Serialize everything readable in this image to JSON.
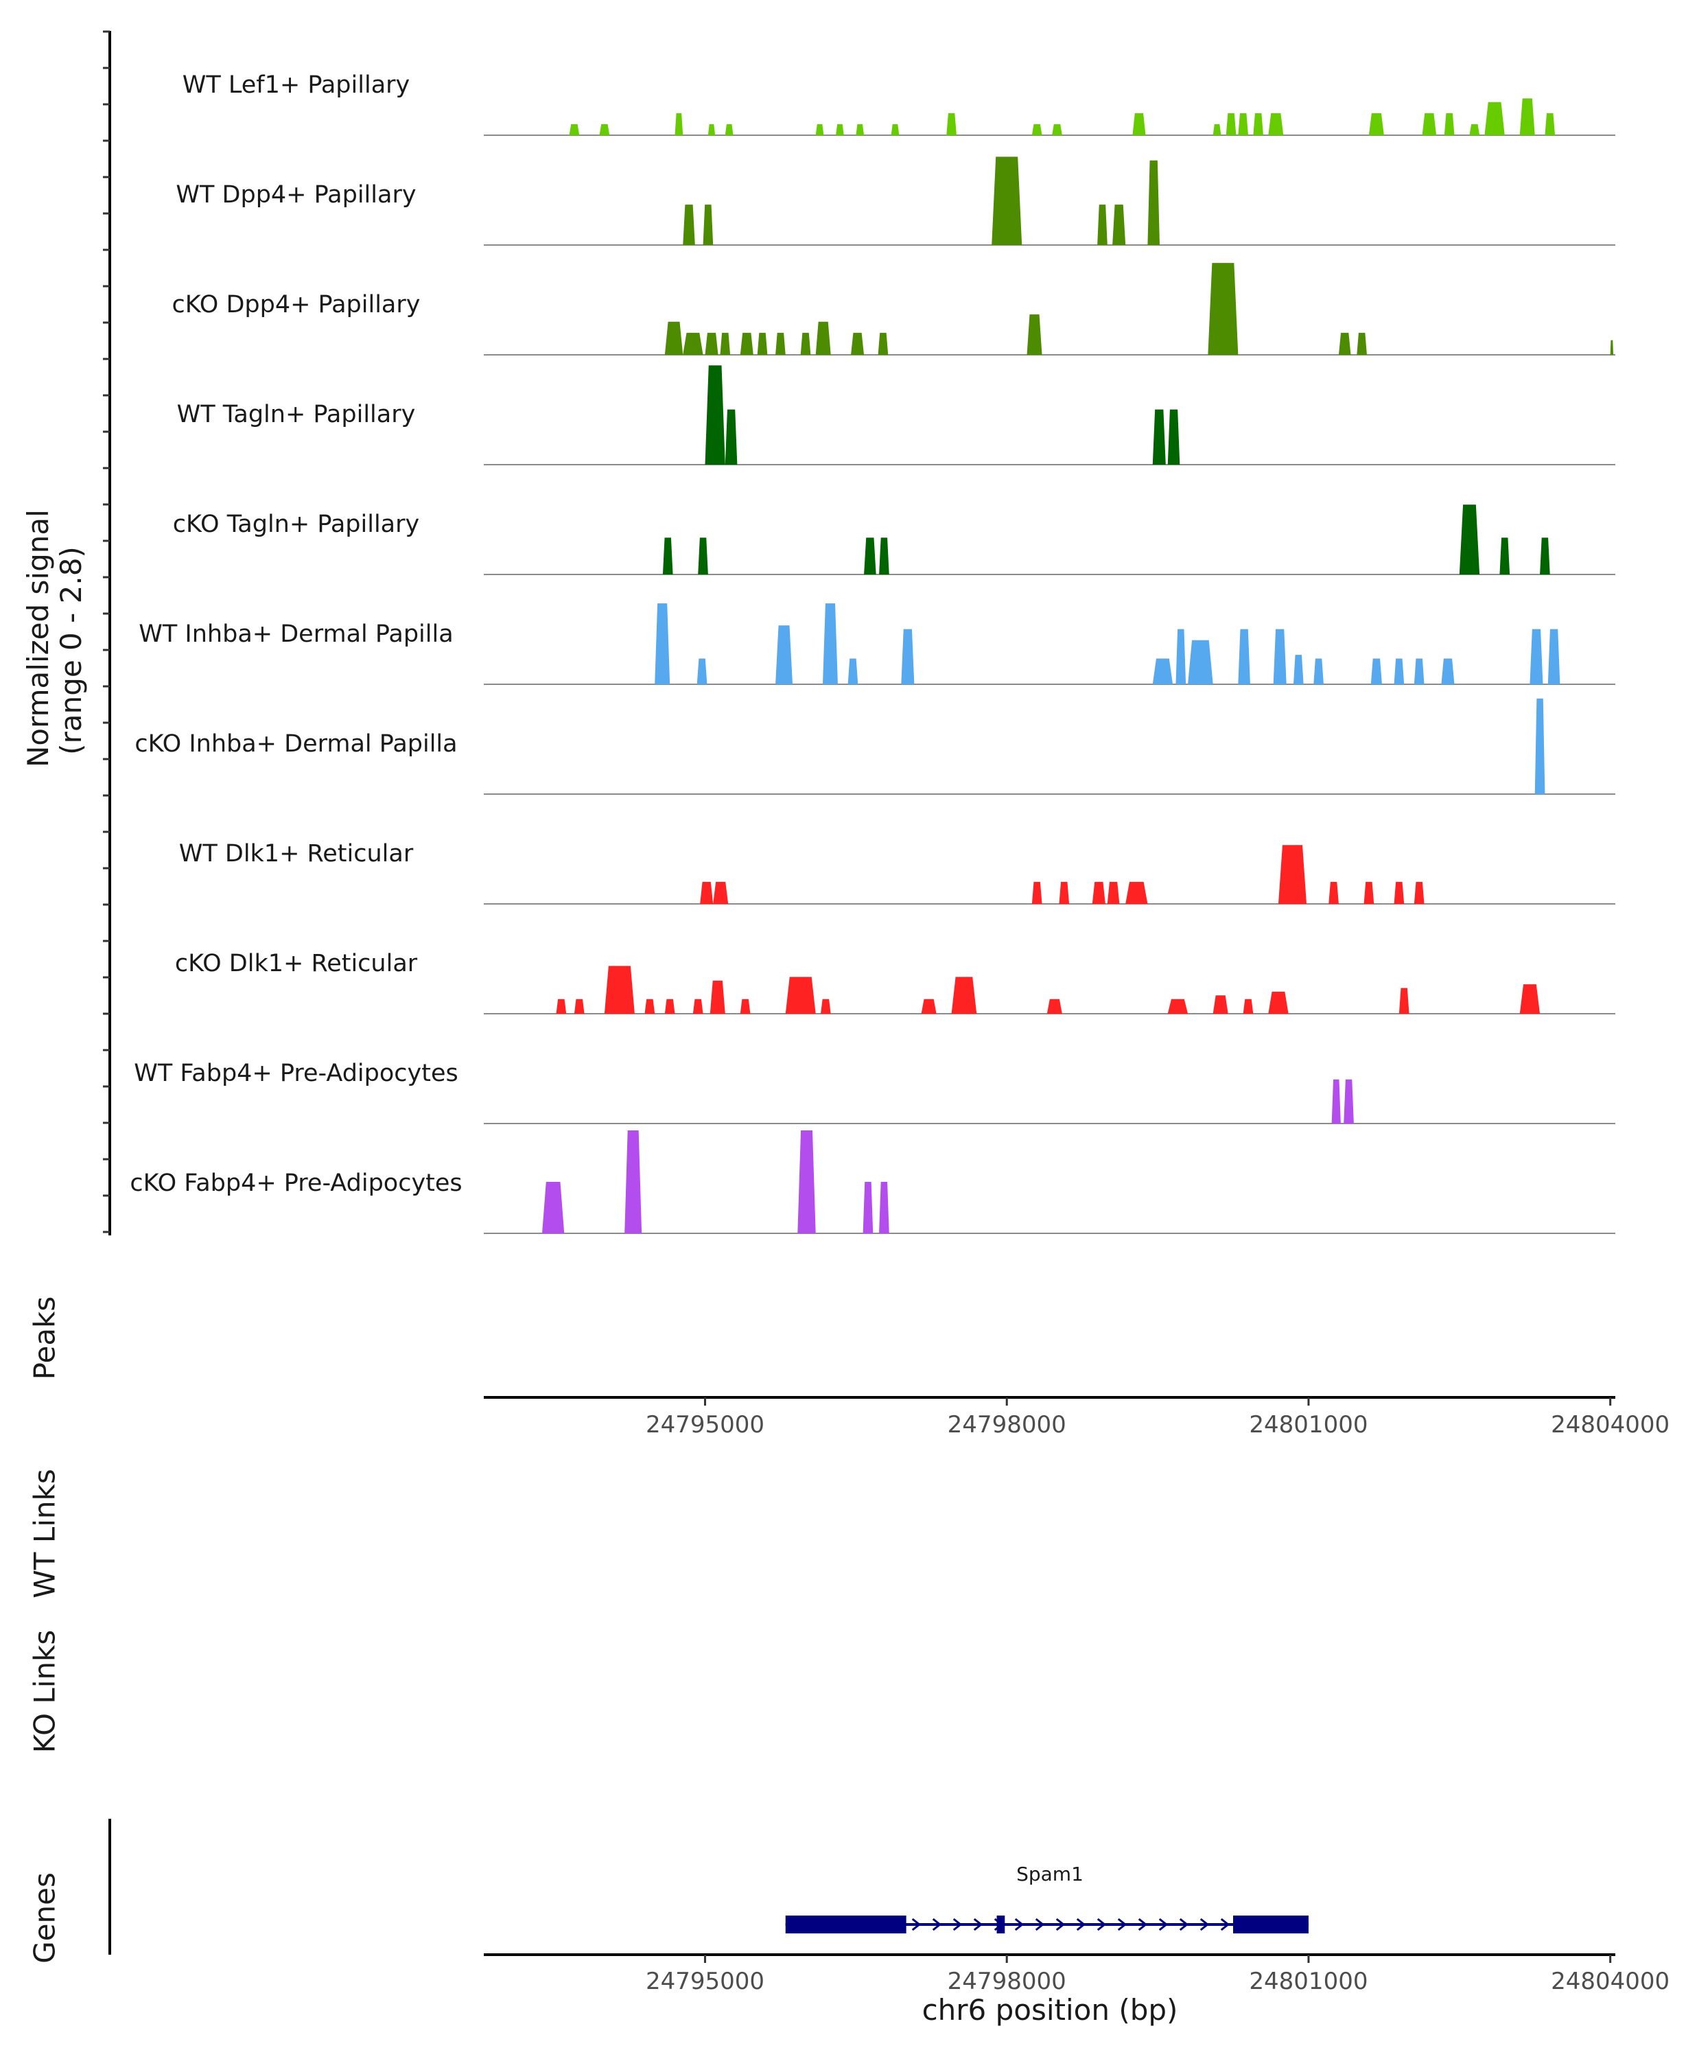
{
  "chart_data": {
    "type": "area",
    "title": "",
    "ylabel": "Normalized signal (range 0 - 2.8)",
    "ylabel_line1": "Normalized signal",
    "ylabel_line2": "(range 0 - 2.8)",
    "xlabel": "chr6 position (bp)",
    "xlim": [
      24792800,
      24804050
    ],
    "ylim": [
      0,
      2.8
    ],
    "x_ticks": [
      24795000,
      24798000,
      24801000,
      24804000
    ],
    "x_tick_labels": [
      "24795000",
      "24798000",
      "24801000",
      "24804000"
    ],
    "panel_labels": {
      "peaks": "Peaks",
      "wt_links": "WT Links",
      "ko_links": "KO Links",
      "genes": "Genes"
    },
    "series": [
      {
        "name": "WT Lef1+ Papillary",
        "color": "#66cc00",
        "peaks": [
          [
            24793650,
            24793750,
            0.3
          ],
          [
            24793950,
            24794050,
            0.3
          ],
          [
            24794700,
            24794780,
            0.6
          ],
          [
            24795030,
            24795100,
            0.3
          ],
          [
            24795200,
            24795280,
            0.3
          ],
          [
            24796100,
            24796180,
            0.3
          ],
          [
            24796300,
            24796380,
            0.3
          ],
          [
            24796500,
            24796580,
            0.3
          ],
          [
            24796850,
            24796930,
            0.3
          ],
          [
            24797400,
            24797500,
            0.6
          ],
          [
            24798250,
            24798350,
            0.3
          ],
          [
            24798450,
            24798550,
            0.3
          ],
          [
            24799250,
            24799380,
            0.6
          ],
          [
            24800050,
            24800130,
            0.3
          ],
          [
            24800180,
            24800280,
            0.6
          ],
          [
            24800300,
            24800400,
            0.6
          ],
          [
            24800450,
            24800550,
            0.6
          ],
          [
            24800600,
            24800750,
            0.6
          ],
          [
            24801600,
            24801750,
            0.6
          ],
          [
            24802130,
            24802270,
            0.6
          ],
          [
            24802350,
            24802450,
            0.6
          ],
          [
            24802600,
            24802700,
            0.3
          ],
          [
            24802750,
            24802950,
            0.9
          ],
          [
            24803100,
            24803250,
            1.0
          ],
          [
            24803350,
            24803450,
            0.6
          ]
        ]
      },
      {
        "name": "WT Dpp4+ Papillary",
        "color": "#4d8c00",
        "peaks": [
          [
            24794780,
            24794900,
            1.1
          ],
          [
            24794980,
            24795080,
            1.1
          ],
          [
            24797850,
            24798150,
            2.4
          ],
          [
            24798900,
            24799000,
            1.1
          ],
          [
            24799050,
            24799180,
            1.1
          ],
          [
            24799400,
            24799520,
            2.3
          ]
        ]
      },
      {
        "name": "cKO Dpp4+ Papillary",
        "color": "#4d8c00",
        "peaks": [
          [
            24794600,
            24794780,
            0.9
          ],
          [
            24794780,
            24794980,
            0.6
          ],
          [
            24795000,
            24795130,
            0.6
          ],
          [
            24795150,
            24795250,
            0.6
          ],
          [
            24795350,
            24795480,
            0.6
          ],
          [
            24795520,
            24795620,
            0.6
          ],
          [
            24795700,
            24795800,
            0.6
          ],
          [
            24795950,
            24796050,
            0.6
          ],
          [
            24796100,
            24796250,
            0.9
          ],
          [
            24796450,
            24796580,
            0.6
          ],
          [
            24796720,
            24796820,
            0.6
          ],
          [
            24798200,
            24798350,
            1.1
          ],
          [
            24800000,
            24800300,
            2.5
          ],
          [
            24801300,
            24801420,
            0.6
          ],
          [
            24801480,
            24801580,
            0.6
          ],
          [
            24804000,
            24804030,
            0.4
          ]
        ]
      },
      {
        "name": "WT Tagln+ Papillary",
        "color": "#006400",
        "peaks": [
          [
            24795000,
            24795200,
            2.7
          ],
          [
            24795200,
            24795320,
            1.5
          ],
          [
            24799450,
            24799580,
            1.5
          ],
          [
            24799600,
            24799720,
            1.5
          ]
        ]
      },
      {
        "name": "cKO Tagln+ Papillary",
        "color": "#006400",
        "peaks": [
          [
            24794580,
            24794680,
            1.0
          ],
          [
            24794930,
            24795030,
            1.0
          ],
          [
            24796580,
            24796700,
            1.0
          ],
          [
            24796730,
            24796830,
            1.0
          ],
          [
            24802500,
            24802700,
            1.9
          ],
          [
            24802900,
            24803000,
            1.0
          ],
          [
            24803300,
            24803400,
            1.0
          ]
        ]
      },
      {
        "name": "WT Inhba+ Dermal Papilla",
        "color": "#56a9ee",
        "peaks": [
          [
            24794500,
            24794650,
            2.2
          ],
          [
            24794920,
            24795020,
            0.7
          ],
          [
            24795700,
            24795870,
            1.6
          ],
          [
            24796170,
            24796320,
            2.2
          ],
          [
            24796420,
            24796520,
            0.7
          ],
          [
            24796950,
            24797080,
            1.5
          ],
          [
            24799450,
            24799650,
            0.7
          ],
          [
            24799680,
            24799780,
            1.5
          ],
          [
            24799800,
            24800050,
            1.2
          ],
          [
            24800300,
            24800420,
            1.5
          ],
          [
            24800650,
            24800780,
            1.5
          ],
          [
            24800850,
            24800950,
            0.8
          ],
          [
            24801050,
            24801150,
            0.7
          ],
          [
            24801620,
            24801730,
            0.7
          ],
          [
            24801850,
            24801950,
            0.7
          ],
          [
            24802050,
            24802150,
            0.7
          ],
          [
            24802320,
            24802450,
            0.7
          ],
          [
            24803200,
            24803330,
            1.5
          ],
          [
            24803380,
            24803500,
            1.5
          ]
        ]
      },
      {
        "name": "cKO Inhba+ Dermal Papilla",
        "color": "#56a9ee",
        "peaks": [
          [
            24803250,
            24803350,
            2.6
          ]
        ]
      },
      {
        "name": "WT Dlk1+ Reticular",
        "color": "#ff2222",
        "peaks": [
          [
            24794950,
            24795080,
            0.6
          ],
          [
            24795080,
            24795230,
            0.6
          ],
          [
            24798250,
            24798350,
            0.6
          ],
          [
            24798520,
            24798620,
            0.6
          ],
          [
            24798850,
            24798980,
            0.6
          ],
          [
            24799000,
            24799120,
            0.6
          ],
          [
            24799180,
            24799400,
            0.6
          ],
          [
            24800700,
            24800980,
            1.6
          ],
          [
            24801200,
            24801300,
            0.6
          ],
          [
            24801550,
            24801650,
            0.6
          ],
          [
            24801850,
            24801950,
            0.6
          ],
          [
            24802050,
            24802150,
            0.6
          ]
        ]
      },
      {
        "name": "cKO Dlk1+ Reticular",
        "color": "#ff2222",
        "peaks": [
          [
            24793520,
            24793620,
            0.4
          ],
          [
            24793700,
            24793800,
            0.4
          ],
          [
            24794000,
            24794300,
            1.3
          ],
          [
            24794400,
            24794500,
            0.4
          ],
          [
            24794600,
            24794700,
            0.4
          ],
          [
            24794880,
            24794980,
            0.4
          ],
          [
            24795050,
            24795200,
            0.9
          ],
          [
            24795350,
            24795450,
            0.4
          ],
          [
            24795800,
            24796100,
            1.0
          ],
          [
            24796150,
            24796250,
            0.4
          ],
          [
            24797150,
            24797300,
            0.4
          ],
          [
            24797450,
            24797700,
            1.0
          ],
          [
            24798400,
            24798550,
            0.4
          ],
          [
            24799600,
            24799800,
            0.4
          ],
          [
            24800050,
            24800200,
            0.5
          ],
          [
            24800350,
            24800450,
            0.4
          ],
          [
            24800600,
            24800800,
            0.6
          ],
          [
            24801900,
            24802000,
            0.7
          ],
          [
            24803100,
            24803300,
            0.8
          ]
        ]
      },
      {
        "name": "WT Fabp4+ Pre-Adipocytes",
        "color": "#b34dee",
        "peaks": [
          [
            24801230,
            24801320,
            1.2
          ],
          [
            24801350,
            24801450,
            1.2
          ]
        ]
      },
      {
        "name": "cKO Fabp4+ Pre-Adipocytes",
        "color": "#b34dee",
        "peaks": [
          [
            24793380,
            24793600,
            1.4
          ],
          [
            24794200,
            24794370,
            2.8
          ],
          [
            24795920,
            24796100,
            2.8
          ],
          [
            24796570,
            24796670,
            1.4
          ],
          [
            24796730,
            24796830,
            1.4
          ]
        ]
      }
    ],
    "gene": {
      "name": "Spam1",
      "color": "#000080",
      "start": 24795800,
      "end": 24801000,
      "exons": [
        [
          24795800,
          24797000
        ],
        [
          24797900,
          24797980
        ],
        [
          24800250,
          24801000
        ]
      ]
    }
  }
}
